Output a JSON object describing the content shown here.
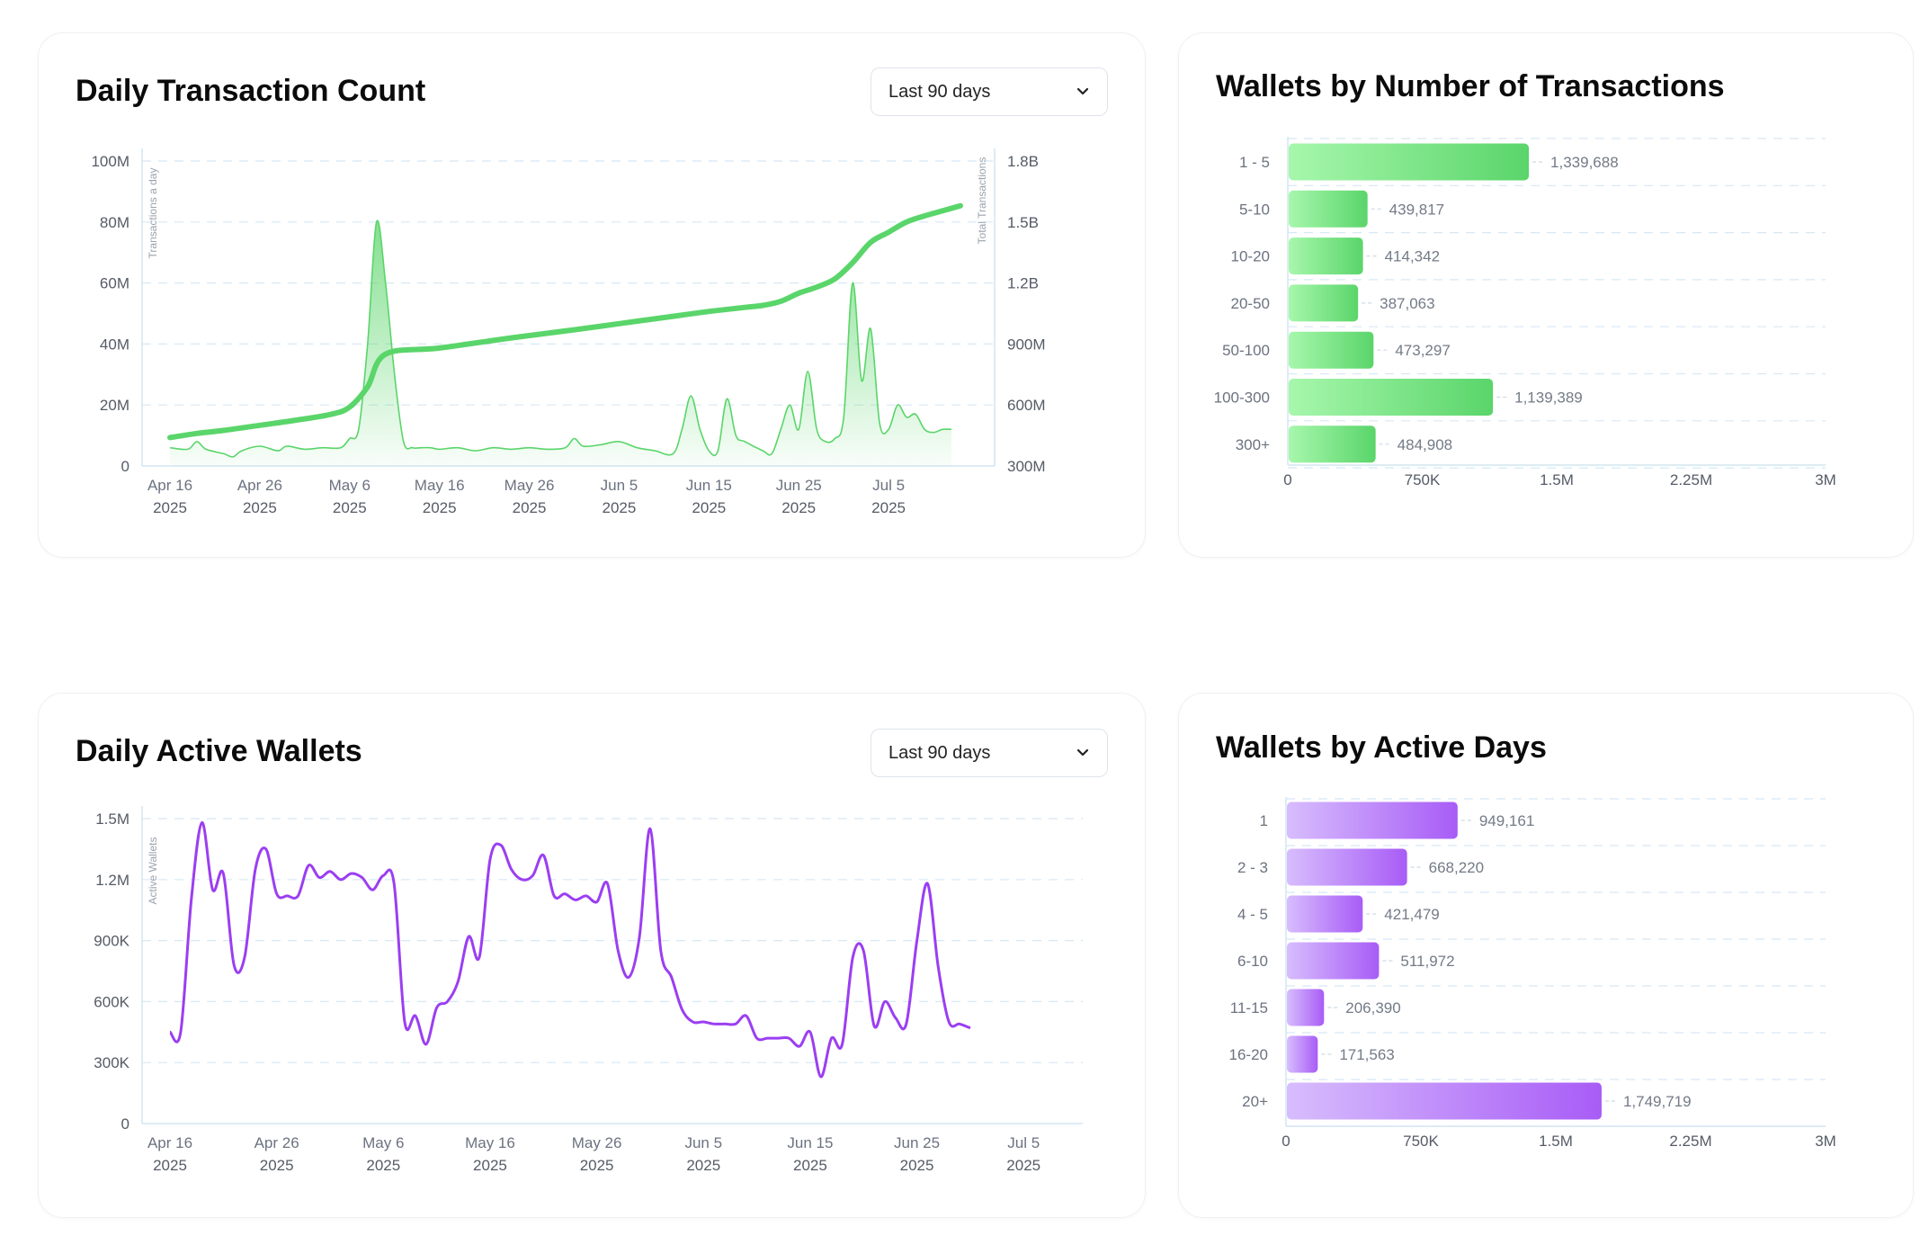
{
  "dropdown_label": "Last 90 days",
  "colors": {
    "green": "#5ad56a",
    "green_light": "#a7f7ac",
    "purple": "#9b3ef2",
    "purple_light": "#d7bdfd",
    "grid": "#d6e8f5"
  },
  "chart_data": [
    {
      "id": "daily_tx",
      "type": "line",
      "title": "Daily Transaction Count",
      "ylabel": "Transactions a day",
      "y2label": "Total Transactions",
      "x_ticks": [
        {
          "month": "Apr 16",
          "year": "2025",
          "day": 0
        },
        {
          "month": "Apr 26",
          "year": "2025",
          "day": 10
        },
        {
          "month": "May 6",
          "year": "2025",
          "day": 20
        },
        {
          "month": "May 16",
          "year": "2025",
          "day": 30
        },
        {
          "month": "May 26",
          "year": "2025",
          "day": 40
        },
        {
          "month": "Jun 5",
          "year": "2025",
          "day": 50
        },
        {
          "month": "Jun 15",
          "year": "2025",
          "day": 60
        },
        {
          "month": "Jun 25",
          "year": "2025",
          "day": 70
        },
        {
          "month": "Jul 5",
          "year": "2025",
          "day": 80
        }
      ],
      "xlim": [
        0,
        89
      ],
      "y_ticks": [
        "0",
        "20M",
        "40M",
        "60M",
        "80M",
        "100M"
      ],
      "ylim": [
        0,
        100
      ],
      "y2_ticks": [
        "300M",
        "600M",
        "900M",
        "1.2B",
        "1.5B",
        "1.8B"
      ],
      "y2lim": [
        300,
        1800
      ],
      "series": [
        {
          "name": "Transactions a day",
          "unit": "M",
          "axis": "left",
          "points": [
            [
              0,
              6
            ],
            [
              2,
              5.5
            ],
            [
              3,
              8
            ],
            [
              4,
              5.5
            ],
            [
              6,
              4
            ],
            [
              7,
              3
            ],
            [
              8,
              5
            ],
            [
              10,
              6.5
            ],
            [
              12,
              5
            ],
            [
              13,
              6.5
            ],
            [
              15,
              5.5
            ],
            [
              17,
              6
            ],
            [
              19,
              6
            ],
            [
              20,
              9
            ],
            [
              21,
              12
            ],
            [
              22,
              40
            ],
            [
              23,
              80
            ],
            [
              24,
              60
            ],
            [
              25,
              30
            ],
            [
              26,
              8
            ],
            [
              27,
              6
            ],
            [
              28,
              6
            ],
            [
              29,
              6
            ],
            [
              30,
              5.5
            ],
            [
              32,
              6
            ],
            [
              34,
              5
            ],
            [
              36,
              6
            ],
            [
              38,
              5.5
            ],
            [
              40,
              6
            ],
            [
              42,
              5.5
            ],
            [
              44,
              6
            ],
            [
              45,
              9
            ],
            [
              46,
              6.5
            ],
            [
              48,
              7
            ],
            [
              50,
              8
            ],
            [
              52,
              6
            ],
            [
              54,
              5
            ],
            [
              56,
              4
            ],
            [
              57,
              12
            ],
            [
              58,
              23
            ],
            [
              59,
              12
            ],
            [
              60,
              5
            ],
            [
              61,
              5
            ],
            [
              62,
              22
            ],
            [
              63,
              10
            ],
            [
              64,
              8
            ],
            [
              66,
              5
            ],
            [
              67,
              4
            ],
            [
              68,
              12
            ],
            [
              69,
              20
            ],
            [
              70,
              12
            ],
            [
              71,
              31
            ],
            [
              72,
              12
            ],
            [
              73,
              8
            ],
            [
              74,
              9
            ],
            [
              75,
              16
            ],
            [
              76,
              60
            ],
            [
              77,
              28
            ],
            [
              78,
              45
            ],
            [
              79,
              14
            ],
            [
              80,
              12
            ],
            [
              81,
              20
            ],
            [
              82,
              16
            ],
            [
              83,
              17
            ],
            [
              84,
              12
            ],
            [
              85,
              11
            ],
            [
              86,
              12
            ],
            [
              87,
              12
            ]
          ]
        },
        {
          "name": "Total Transactions",
          "unit": "M",
          "axis": "right",
          "points": [
            [
              0,
              440
            ],
            [
              3,
              460
            ],
            [
              6,
              475
            ],
            [
              10,
              500
            ],
            [
              14,
              525
            ],
            [
              18,
              555
            ],
            [
              20,
              590
            ],
            [
              22,
              690
            ],
            [
              24,
              850
            ],
            [
              30,
              880
            ],
            [
              38,
              930
            ],
            [
              45,
              970
            ],
            [
              50,
              1000
            ],
            [
              55,
              1030
            ],
            [
              60,
              1060
            ],
            [
              64,
              1080
            ],
            [
              66,
              1090
            ],
            [
              68,
              1110
            ],
            [
              70,
              1150
            ],
            [
              72,
              1180
            ],
            [
              74,
              1220
            ],
            [
              76,
              1300
            ],
            [
              78,
              1400
            ],
            [
              80,
              1450
            ],
            [
              82,
              1500
            ],
            [
              84,
              1530
            ],
            [
              86,
              1555
            ],
            [
              88,
              1580
            ]
          ]
        }
      ]
    },
    {
      "id": "wallets_by_tx",
      "type": "bar",
      "orientation": "horizontal",
      "title": "Wallets by Number of Transactions",
      "categories": [
        "1 - 5",
        "5-10",
        "10-20",
        "20-50",
        "50-100",
        "100-300",
        "300+"
      ],
      "values": [
        1339688,
        439817,
        414342,
        387063,
        473297,
        1139389,
        484908
      ],
      "value_labels": [
        "1,339,688",
        "439,817",
        "414,342",
        "387,063",
        "473,297",
        "1,139,389",
        "484,908"
      ],
      "x_ticks": [
        "0",
        "750K",
        "1.5M",
        "2.25M",
        "3M"
      ],
      "xlim": [
        0,
        3000000
      ]
    },
    {
      "id": "daily_active_wallets",
      "type": "line",
      "title": "Daily Active Wallets",
      "ylabel": "Active Wallets",
      "x_ticks": [
        {
          "month": "Apr 16",
          "year": "2025",
          "day": 0
        },
        {
          "month": "Apr 26",
          "year": "2025",
          "day": 10
        },
        {
          "month": "May 6",
          "year": "2025",
          "day": 20
        },
        {
          "month": "May 16",
          "year": "2025",
          "day": 30
        },
        {
          "month": "May 26",
          "year": "2025",
          "day": 40
        },
        {
          "month": "Jun 5",
          "year": "2025",
          "day": 50
        },
        {
          "month": "Jun 15",
          "year": "2025",
          "day": 60
        },
        {
          "month": "Jun 25",
          "year": "2025",
          "day": 70
        },
        {
          "month": "Jul 5",
          "year": "2025",
          "day": 80
        }
      ],
      "xlim": [
        0,
        89
      ],
      "y_ticks": [
        "0",
        "300K",
        "600K",
        "900K",
        "1.2M",
        "1.5M"
      ],
      "ylim": [
        0,
        1500
      ],
      "series": [
        {
          "name": "Active Wallets",
          "unit": "K",
          "points": [
            [
              0,
              450
            ],
            [
              1,
              450
            ],
            [
              2,
              1100
            ],
            [
              3,
              1480
            ],
            [
              4,
              1150
            ],
            [
              5,
              1230
            ],
            [
              6,
              780
            ],
            [
              7,
              820
            ],
            [
              8,
              1250
            ],
            [
              9,
              1350
            ],
            [
              10,
              1130
            ],
            [
              11,
              1120
            ],
            [
              12,
              1120
            ],
            [
              13,
              1270
            ],
            [
              14,
              1210
            ],
            [
              15,
              1240
            ],
            [
              16,
              1200
            ],
            [
              17,
              1230
            ],
            [
              18,
              1210
            ],
            [
              19,
              1150
            ],
            [
              20,
              1220
            ],
            [
              21,
              1180
            ],
            [
              22,
              500
            ],
            [
              23,
              530
            ],
            [
              24,
              390
            ],
            [
              25,
              570
            ],
            [
              26,
              600
            ],
            [
              27,
              700
            ],
            [
              28,
              920
            ],
            [
              29,
              820
            ],
            [
              30,
              1300
            ],
            [
              31,
              1370
            ],
            [
              32,
              1250
            ],
            [
              33,
              1200
            ],
            [
              34,
              1220
            ],
            [
              35,
              1320
            ],
            [
              36,
              1120
            ],
            [
              37,
              1130
            ],
            [
              38,
              1100
            ],
            [
              39,
              1120
            ],
            [
              40,
              1090
            ],
            [
              41,
              1180
            ],
            [
              42,
              850
            ],
            [
              43,
              720
            ],
            [
              44,
              920
            ],
            [
              45,
              1450
            ],
            [
              46,
              850
            ],
            [
              47,
              720
            ],
            [
              48,
              560
            ],
            [
              49,
              500
            ],
            [
              50,
              500
            ],
            [
              51,
              490
            ],
            [
              52,
              490
            ],
            [
              53,
              490
            ],
            [
              54,
              530
            ],
            [
              55,
              420
            ],
            [
              56,
              420
            ],
            [
              57,
              420
            ],
            [
              58,
              420
            ],
            [
              59,
              380
            ],
            [
              60,
              450
            ],
            [
              61,
              230
            ],
            [
              62,
              420
            ],
            [
              63,
              390
            ],
            [
              64,
              820
            ],
            [
              65,
              850
            ],
            [
              66,
              480
            ],
            [
              67,
              600
            ],
            [
              68,
              520
            ],
            [
              69,
              490
            ],
            [
              70,
              900
            ],
            [
              71,
              1180
            ],
            [
              72,
              770
            ],
            [
              73,
              500
            ],
            [
              74,
              490
            ],
            [
              75,
              470
            ]
          ]
        }
      ]
    },
    {
      "id": "wallets_by_days",
      "type": "bar",
      "orientation": "horizontal",
      "title": "Wallets by Active Days",
      "categories": [
        "1",
        "2 - 3",
        "4 - 5",
        "6-10",
        "11-15",
        "16-20",
        "20+"
      ],
      "values": [
        949161,
        668220,
        421479,
        511972,
        206390,
        171563,
        1749719
      ],
      "value_labels": [
        "949,161",
        "668,220",
        "421,479",
        "511,972",
        "206,390",
        "171,563",
        "1,749,719"
      ],
      "x_ticks": [
        "0",
        "750K",
        "1.5M",
        "2.25M",
        "3M"
      ],
      "xlim": [
        0,
        3000000
      ]
    }
  ]
}
